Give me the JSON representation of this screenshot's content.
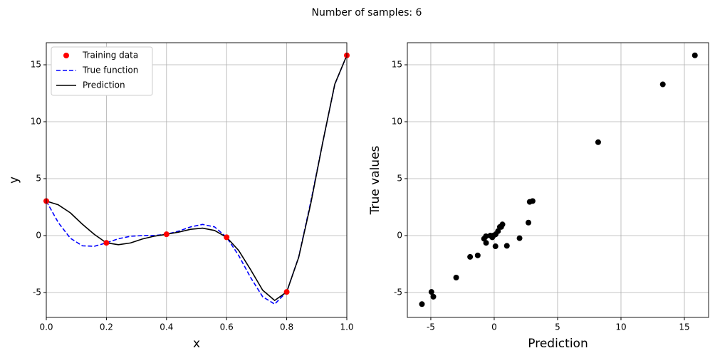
{
  "title": "Number of samples: 6",
  "chart_data": [
    {
      "type": "line",
      "xlabel": "x",
      "ylabel": "y",
      "x": [
        0,
        0.04,
        0.08,
        0.12,
        0.16,
        0.2,
        0.24,
        0.28,
        0.32,
        0.36,
        0.4,
        0.44,
        0.48,
        0.52,
        0.56,
        0.6,
        0.64,
        0.68,
        0.72,
        0.76,
        0.8,
        0.84,
        0.88,
        0.92,
        0.96,
        1
      ],
      "series": [
        {
          "name": "Training data",
          "color": "#ff0000",
          "style": "marker",
          "x": [
            0,
            0.2,
            0.4,
            0.6,
            0.8,
            1
          ],
          "values": [
            3.03,
            -0.64,
            0.115,
            -0.15,
            -4.95,
            15.83
          ]
        },
        {
          "name": "True function",
          "color": "#0000ff",
          "style": "dashed",
          "values": [
            3.03,
            1.14,
            -0.23,
            -0.9,
            -0.94,
            -0.64,
            -0.28,
            -0.06,
            -0.001,
            0.008,
            0.115,
            0.39,
            0.76,
            0.98,
            0.76,
            -0.15,
            -1.74,
            -3.69,
            -5.37,
            -6.02,
            -4.95,
            -1.87,
            2.96,
            8.2,
            13.28,
            15.83
          ]
        },
        {
          "name": "Prediction",
          "color": "#000000",
          "style": "solid",
          "values": [
            3.03,
            2.7,
            2.0,
            1.0,
            0.1,
            -0.64,
            -0.8,
            -0.65,
            -0.3,
            -0.05,
            0.115,
            0.3,
            0.55,
            0.65,
            0.45,
            -0.15,
            -1.3,
            -3.0,
            -4.8,
            -5.7,
            -4.95,
            -1.9,
            2.8,
            8.2,
            13.3,
            15.83
          ]
        }
      ],
      "xlim": [
        0,
        1
      ],
      "xticks": [
        {
          "value": 0,
          "label": "0.0"
        },
        0.2,
        0.4,
        0.6,
        0.8,
        {
          "value": 1,
          "label": "1.0"
        }
      ],
      "ylim": [
        -7.19,
        16.94
      ],
      "yticks": [
        -5,
        0,
        5,
        10,
        15
      ],
      "grid": true,
      "legend": "upper left"
    },
    {
      "type": "scatter",
      "xlabel": "Prediction",
      "ylabel": "True values",
      "color": "#000000",
      "x": [
        3.03,
        2.7,
        2.0,
        1.0,
        0.1,
        -0.64,
        -0.8,
        -0.65,
        -0.3,
        -0.05,
        0.115,
        0.3,
        0.55,
        0.65,
        0.45,
        -0.15,
        -1.3,
        -3.0,
        -4.8,
        -5.7,
        -4.95,
        -1.9,
        2.8,
        8.2,
        13.3,
        15.83
      ],
      "values": [
        3.03,
        1.14,
        -0.23,
        -0.9,
        -0.94,
        -0.64,
        -0.28,
        -0.06,
        -0.001,
        0.008,
        0.115,
        0.39,
        0.76,
        0.98,
        0.76,
        -0.15,
        -1.74,
        -3.69,
        -5.37,
        -6.02,
        -4.95,
        -1.87,
        2.96,
        8.2,
        13.28,
        15.83
      ],
      "xlim": [
        -6.85,
        16.91
      ],
      "xticks": [
        -5,
        0,
        5,
        10,
        15
      ],
      "ylim": [
        -7.19,
        16.94
      ],
      "yticks": [
        -5,
        0,
        5,
        10,
        15
      ],
      "grid": true
    }
  ]
}
